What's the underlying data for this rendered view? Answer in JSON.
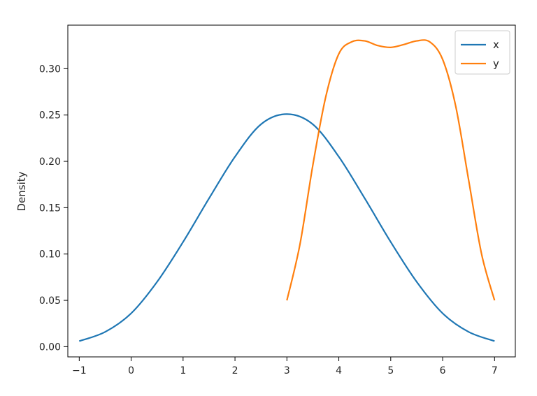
{
  "chart_data": {
    "type": "line",
    "title": "",
    "xlabel": "",
    "ylabel": "Density",
    "xlim": [
      -1.22,
      7.4
    ],
    "ylim": [
      -0.011,
      0.347
    ],
    "xticks": [
      -1,
      0,
      1,
      2,
      3,
      4,
      5,
      6,
      7
    ],
    "yticks": [
      0.0,
      0.05,
      0.1,
      0.15,
      0.2,
      0.25,
      0.3
    ],
    "xtick_labels": [
      "−1",
      "0",
      "1",
      "2",
      "3",
      "4",
      "5",
      "6",
      "7"
    ],
    "ytick_labels": [
      "0.00",
      "0.05",
      "0.10",
      "0.15",
      "0.20",
      "0.25",
      "0.30"
    ],
    "grid": false,
    "legend": "top-right",
    "series": [
      {
        "name": "x",
        "color": "#1f77b4",
        "x": [
          -1,
          -0.5,
          0,
          0.5,
          1,
          1.5,
          2,
          2.5,
          3,
          3.5,
          4,
          4.5,
          5,
          5.5,
          6,
          6.5,
          7
        ],
        "y": [
          0.006,
          0.016,
          0.036,
          0.07,
          0.113,
          0.16,
          0.205,
          0.24,
          0.251,
          0.24,
          0.205,
          0.16,
          0.113,
          0.07,
          0.036,
          0.016,
          0.006
        ]
      },
      {
        "name": "y",
        "color": "#ff7f0e",
        "x": [
          3.0,
          3.25,
          3.5,
          3.75,
          4.0,
          4.25,
          4.5,
          4.75,
          5.0,
          5.25,
          5.5,
          5.75,
          6.0,
          6.25,
          6.5,
          6.75,
          7.0
        ],
        "y": [
          0.05,
          0.11,
          0.196,
          0.27,
          0.316,
          0.329,
          0.33,
          0.325,
          0.323,
          0.326,
          0.33,
          0.329,
          0.31,
          0.26,
          0.18,
          0.1,
          0.05
        ]
      }
    ]
  }
}
